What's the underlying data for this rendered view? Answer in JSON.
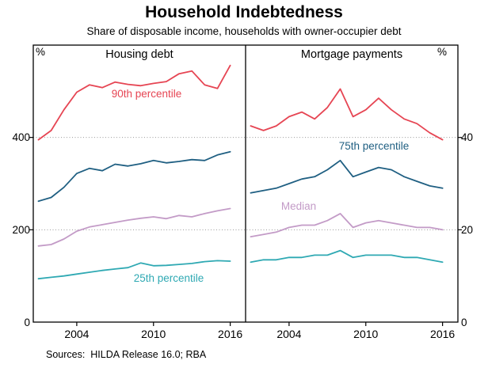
{
  "title": "Household Indebtedness",
  "subtitle": "Share of disposable income, households with owner-occupier debt",
  "sources": "Sources:  HILDA Release 16.0; RBA",
  "chart_data": {
    "type": "line",
    "title": "Household Indebtedness",
    "subtitle": "Share of disposable income, households with owner-occupier debt",
    "grid_color": "#999999",
    "axis_color": "#000000",
    "x_years": [
      2001,
      2002,
      2003,
      2004,
      2005,
      2006,
      2007,
      2008,
      2009,
      2010,
      2011,
      2012,
      2013,
      2014,
      2015,
      2016
    ],
    "x_ticks": [
      2004,
      2010,
      2016
    ],
    "panels": [
      {
        "title": "Housing debt",
        "unit": "%",
        "ylim": [
          0,
          600
        ],
        "gridlines": [
          200,
          400
        ],
        "ytick_labels": [
          "0",
          "200",
          "400"
        ],
        "series": [
          {
            "name": "90th percentile",
            "color": "#e64553",
            "values": [
              395,
              415,
              460,
              498,
              514,
              508,
              520,
              515,
              512,
              517,
              521,
              538,
              544,
              514,
              506,
              556
            ]
          },
          {
            "name": "75th percentile",
            "color": "#1f5f82",
            "values": [
              262,
              270,
              292,
              322,
              333,
              328,
              342,
              338,
              343,
              350,
              345,
              348,
              352,
              350,
              362,
              369
            ]
          },
          {
            "name": "Median",
            "color": "#c39bc7",
            "values": [
              165,
              168,
              180,
              197,
              206,
              211,
              216,
              221,
              225,
              228,
              224,
              231,
              228,
              235,
              241,
              246
            ]
          },
          {
            "name": "25th percentile",
            "color": "#2fa9b3",
            "values": [
              94,
              97,
              100,
              104,
              108,
              112,
              115,
              118,
              128,
              122,
              123,
              125,
              127,
              131,
              133,
              132
            ]
          }
        ]
      },
      {
        "title": "Mortgage payments",
        "unit": "%",
        "ylim": [
          0,
          60
        ],
        "gridlines": [
          20,
          40
        ],
        "ytick_labels": [
          "0",
          "20",
          "40"
        ],
        "series": [
          {
            "name": "90th percentile",
            "color": "#e64553",
            "values": [
              42.5,
              41.5,
              42.5,
              44.5,
              45.5,
              44,
              46.5,
              50.5,
              44.5,
              46,
              48.5,
              46,
              44,
              43,
              41,
              39.5
            ]
          },
          {
            "name": "75th percentile",
            "color": "#1f5f82",
            "values": [
              28,
              28.5,
              29,
              30,
              31,
              31.5,
              33,
              35,
              31.5,
              32.5,
              33.5,
              33,
              31.5,
              30.5,
              29.5,
              29
            ]
          },
          {
            "name": "Median",
            "color": "#c39bc7",
            "values": [
              18.5,
              19,
              19.5,
              20.5,
              21,
              21,
              22,
              23.5,
              20.5,
              21.5,
              22,
              21.5,
              21,
              20.5,
              20.5,
              20
            ]
          },
          {
            "name": "25th percentile",
            "color": "#2fa9b3",
            "values": [
              13,
              13.5,
              13.5,
              14,
              14,
              14.5,
              14.5,
              15.5,
              14,
              14.5,
              14.5,
              14.5,
              14,
              14,
              13.5,
              13
            ]
          }
        ]
      }
    ]
  }
}
